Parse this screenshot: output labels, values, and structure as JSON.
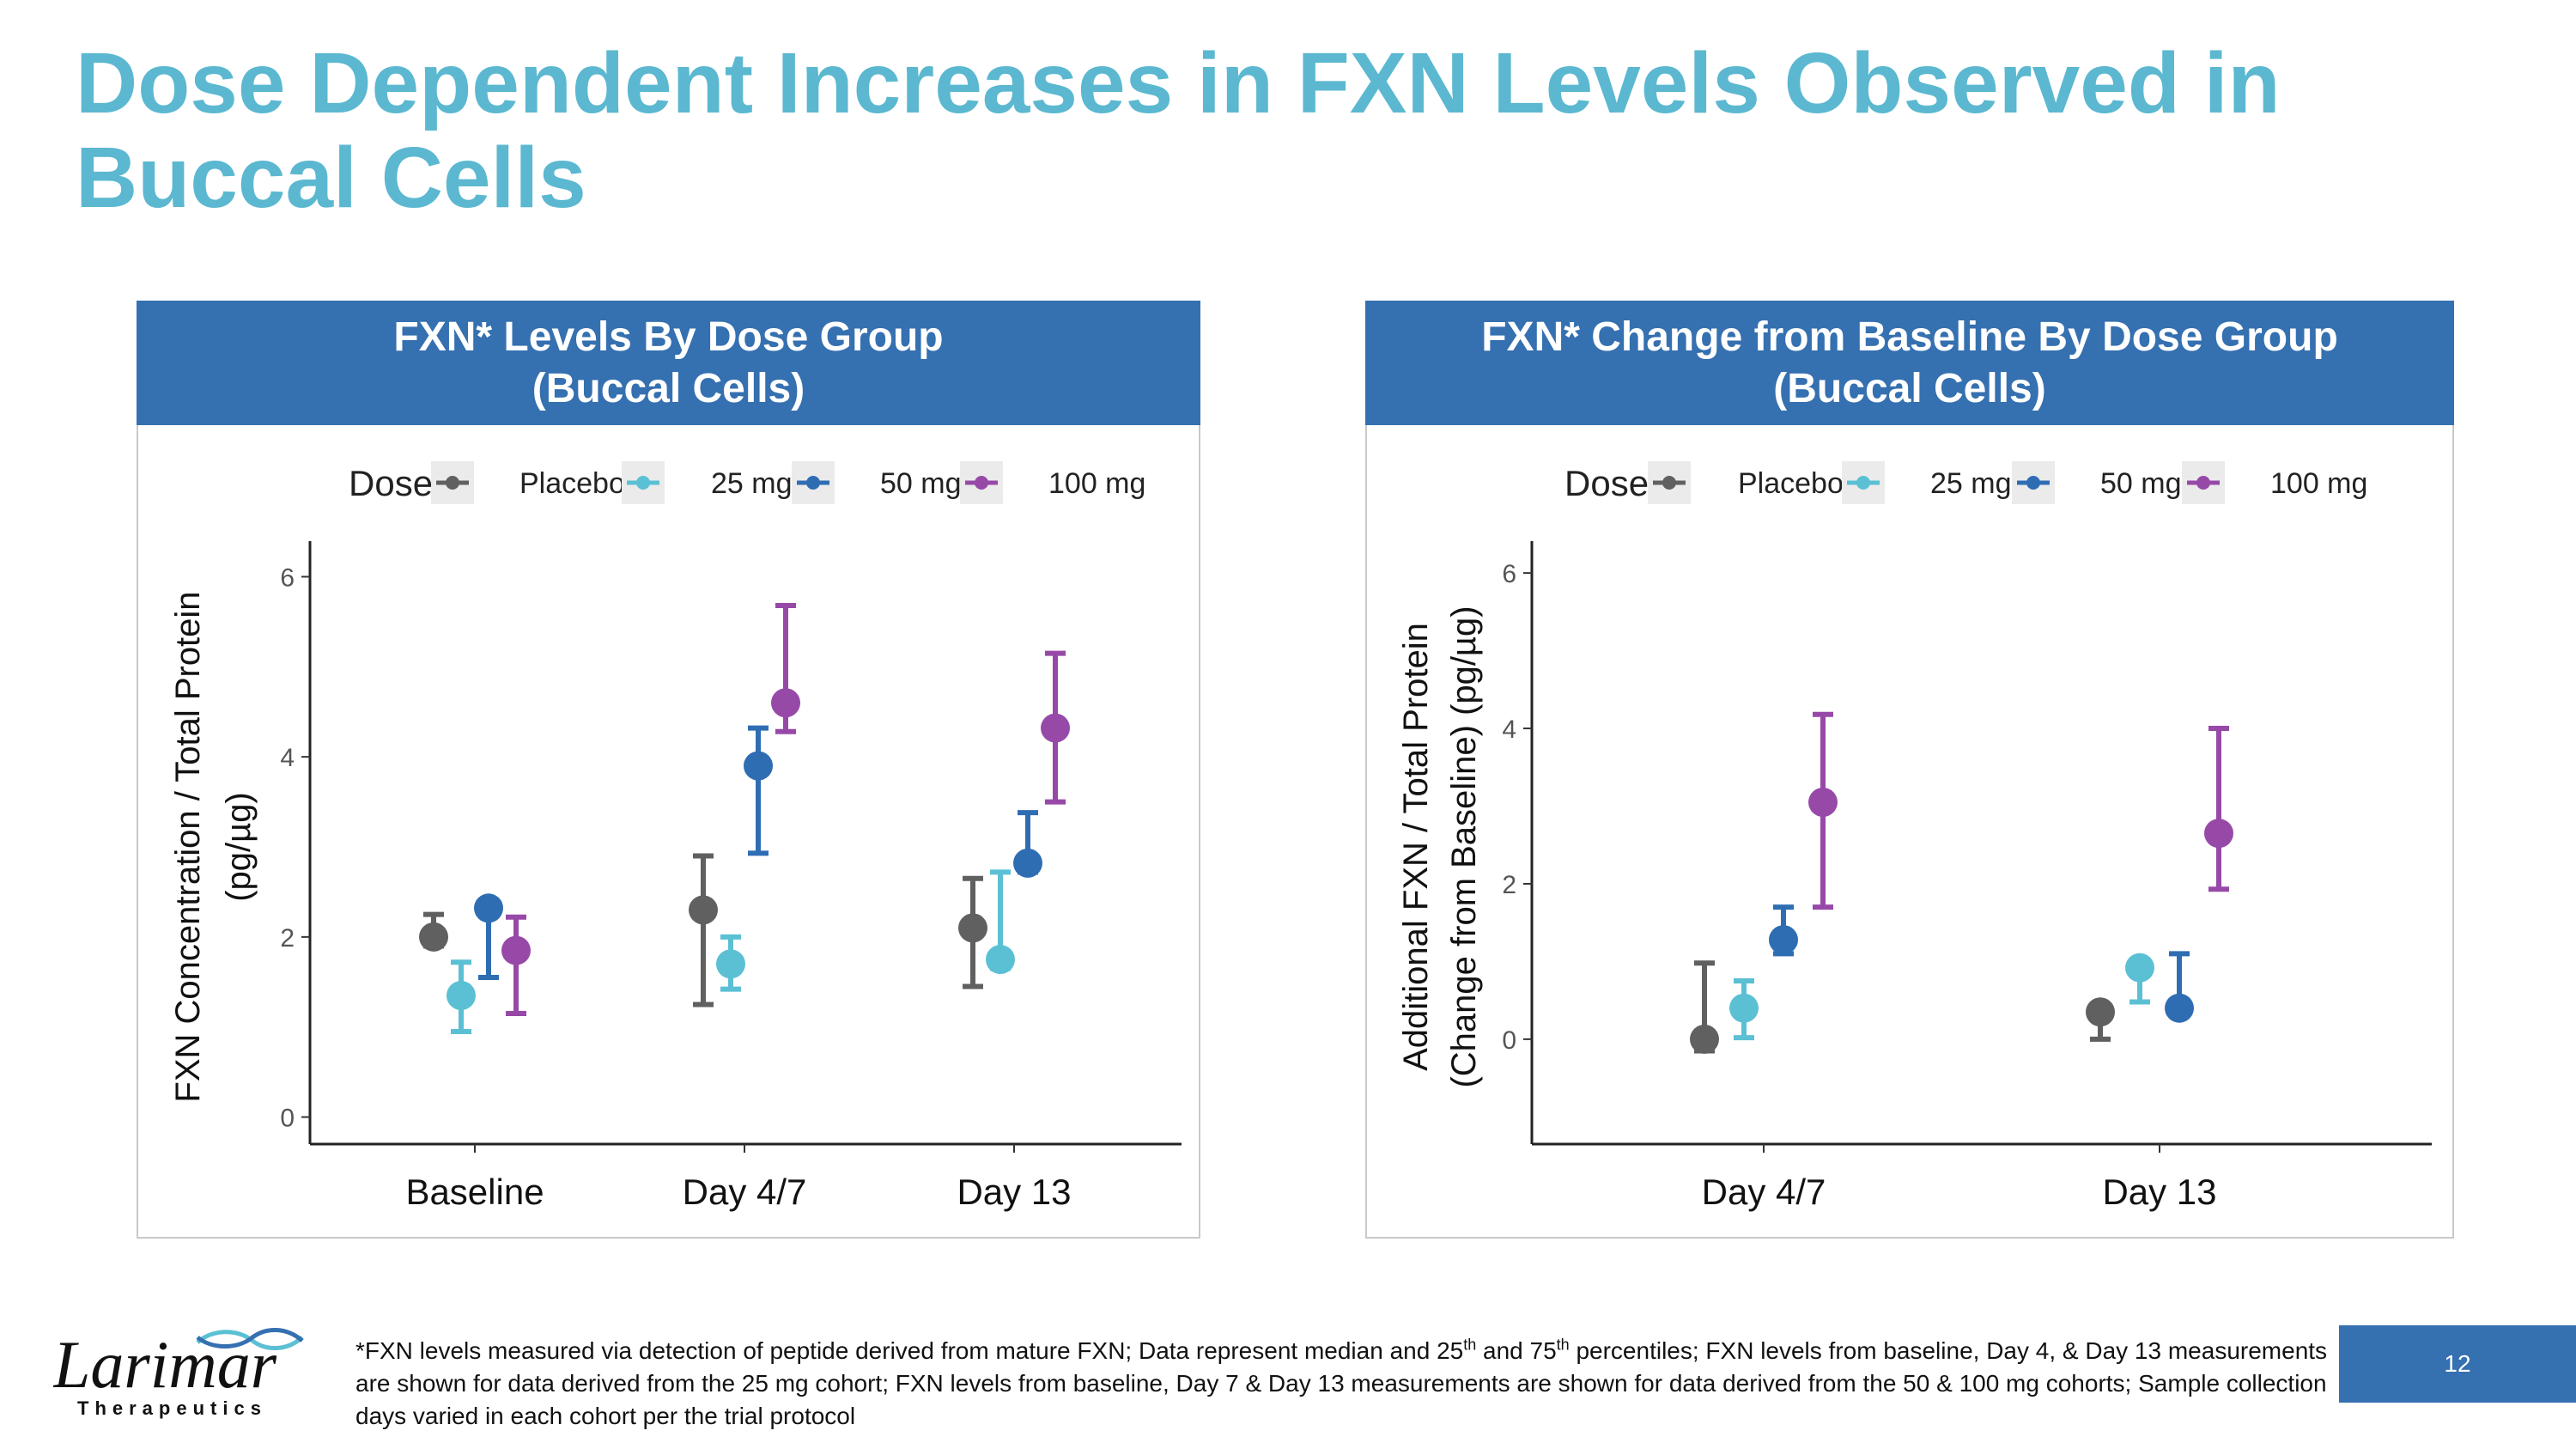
{
  "slide": {
    "title": "Dose Dependent Increases in FXN Levels Observed in Buccal Cells",
    "page_number": "12",
    "footnote": {
      "part1": "*FXN levels measured via detection of peptide derived from mature FXN; Data represent median and 25",
      "sup1": "th",
      "part2": " and 75",
      "sup2": "th",
      "part3": " percentiles; FXN levels from baseline, Day 4, & Day 13 measurements are shown for data derived from the 25 mg cohort; FXN levels from baseline, Day 7 & Day 13 measurements are shown for data derived from the 50 & 100 mg cohorts; Sample collection days varied in each cohort per the trial protocol"
    },
    "logo": {
      "name": "Larimar",
      "subtitle": "Therapeutics"
    }
  },
  "colors": {
    "title": "#5bb8d0",
    "header": "#3570b0",
    "placebo": "#606060",
    "mg25": "#5bc0d4",
    "mg50": "#2f6db3",
    "mg100": "#9749a8"
  },
  "chart_data": [
    {
      "type": "scatter",
      "header_line1": "FXN* Levels By Dose Group",
      "header_line2": "(Buccal Cells)",
      "legend_title": "Dose",
      "ylabel_line1": "FXN Concentration / Total Protein",
      "ylabel_line2": "(pg/µg)",
      "ylim": [
        -0.3,
        6.3
      ],
      "yticks": [
        0,
        2,
        4,
        6
      ],
      "categories": [
        "Baseline",
        "Day 4/7",
        "Day 13"
      ],
      "series": [
        {
          "name": "Placebo",
          "color": "#606060",
          "median": [
            2.0,
            2.3,
            2.1
          ],
          "low": [
            1.9,
            1.25,
            1.45
          ],
          "high": [
            2.25,
            2.9,
            2.65
          ]
        },
        {
          "name": "25 mg",
          "color": "#5bc0d4",
          "median": [
            1.35,
            1.7,
            1.75
          ],
          "low": [
            0.95,
            1.42,
            1.65
          ],
          "high": [
            1.72,
            2.0,
            2.72
          ]
        },
        {
          "name": "50 mg",
          "color": "#2f6db3",
          "median": [
            2.32,
            3.9,
            2.82
          ],
          "low": [
            1.55,
            2.93,
            2.72
          ],
          "high": [
            2.38,
            4.32,
            3.38
          ]
        },
        {
          "name": "100 mg",
          "color": "#9749a8",
          "median": [
            1.85,
            4.6,
            4.32
          ],
          "low": [
            1.15,
            4.28,
            3.5
          ],
          "high": [
            2.22,
            5.68,
            5.15
          ]
        }
      ]
    },
    {
      "type": "scatter",
      "header_line1": "FXN* Change from Baseline By Dose Group",
      "header_line2": "(Buccal Cells)",
      "legend_title": "Dose",
      "ylabel_line1": "Additional FXN / Total Protein",
      "ylabel_line2": "(Change from Baseline) (pg/µg)",
      "ylim": [
        -1.35,
        6.3
      ],
      "yticks": [
        0,
        2,
        4,
        6
      ],
      "categories": [
        "Day 4/7",
        "Day 13"
      ],
      "series": [
        {
          "name": "Placebo",
          "color": "#606060",
          "median": [
            0.0,
            0.35
          ],
          "low": [
            -0.15,
            0.0
          ],
          "high": [
            0.98,
            0.42
          ]
        },
        {
          "name": "25 mg",
          "color": "#5bc0d4",
          "median": [
            0.4,
            0.92
          ],
          "low": [
            0.02,
            0.48
          ],
          "high": [
            0.75,
            0.95
          ]
        },
        {
          "name": "50 mg",
          "color": "#2f6db3",
          "median": [
            1.28,
            0.4
          ],
          "low": [
            1.1,
            0.35
          ],
          "high": [
            1.7,
            1.1
          ]
        },
        {
          "name": "100 mg",
          "color": "#9749a8",
          "median": [
            3.05,
            2.65
          ],
          "low": [
            1.7,
            1.93
          ],
          "high": [
            4.18,
            4.0
          ]
        }
      ]
    }
  ]
}
